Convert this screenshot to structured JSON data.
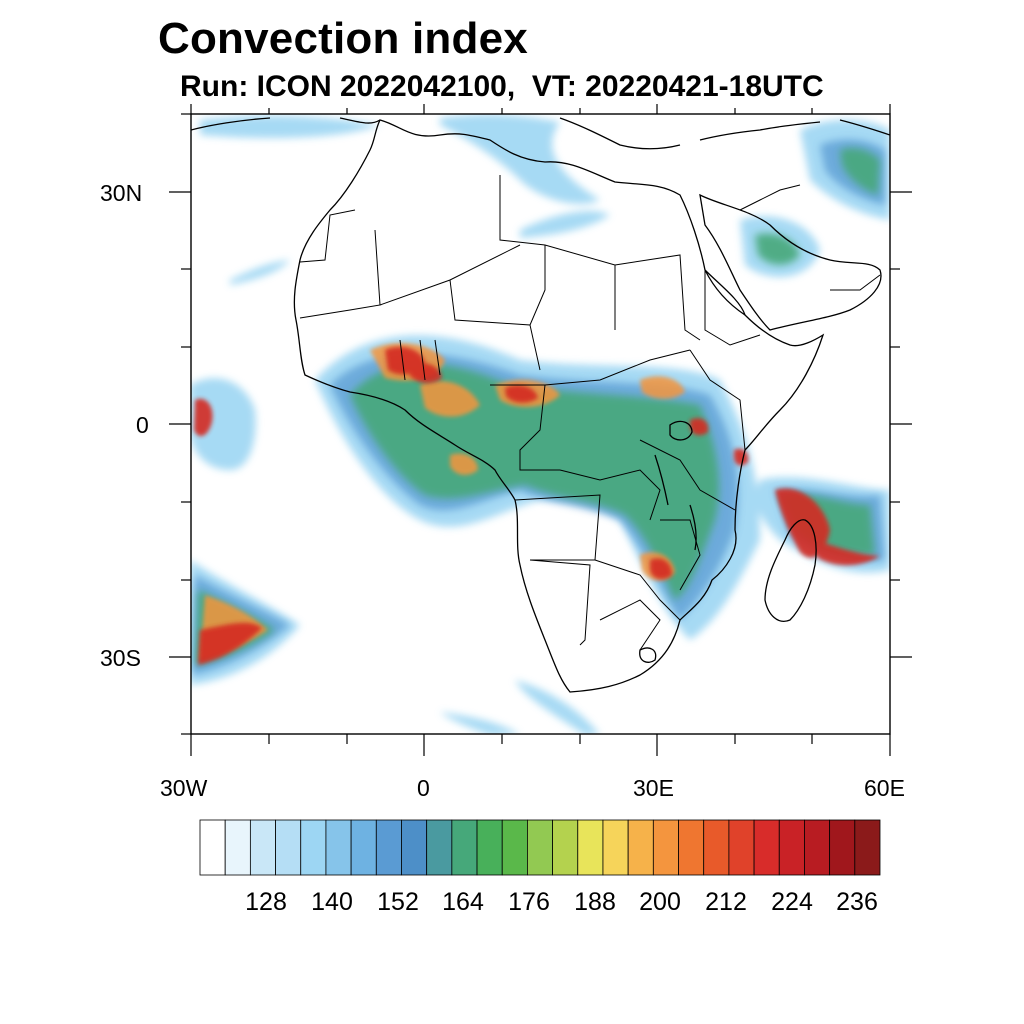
{
  "title": "Convection index",
  "subtitle": "Run: ICON 2022042100,  VT: 20220421-18UTC",
  "axes": {
    "lat_labels": [
      "30N",
      "0",
      "30S"
    ],
    "lon_labels": [
      "30W",
      "0",
      "30E",
      "60E"
    ]
  },
  "colorbar": {
    "labels": [
      "128",
      "140",
      "152",
      "164",
      "176",
      "188",
      "200",
      "212",
      "224",
      "236"
    ],
    "colors": [
      "#ffffff",
      "#e8f5fc",
      "#c9e7f7",
      "#b5def5",
      "#9dd6f3",
      "#86c4ea",
      "#6eb2e2",
      "#5a9bd3",
      "#4d8fc8",
      "#4a9aa0",
      "#46a87a",
      "#48b05a",
      "#5ab84a",
      "#92c952",
      "#b4d24e",
      "#e8e45a",
      "#f6d45a",
      "#f6b24a",
      "#f4953e",
      "#ef7630",
      "#e85a2a",
      "#e0422a",
      "#d82c2a",
      "#c92226",
      "#b81c22",
      "#a0171c",
      "#8b1a1a"
    ]
  },
  "map": {
    "intense_color": "#d42a22",
    "coastline_color": "#000000"
  }
}
